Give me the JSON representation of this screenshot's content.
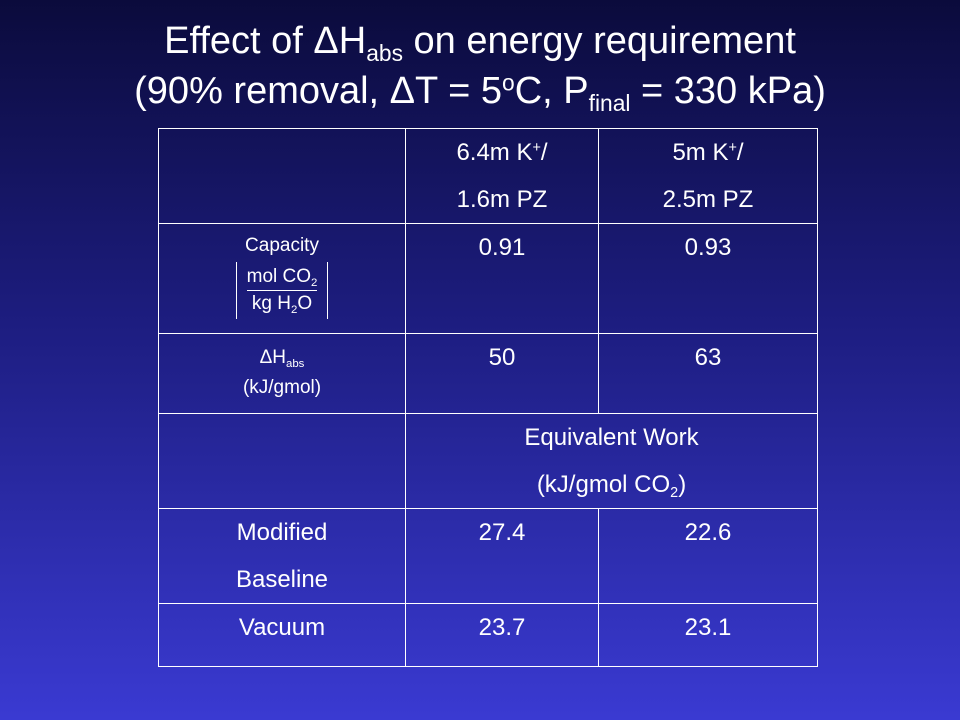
{
  "title": {
    "line1": [
      "Effect of ",
      "ΔH",
      "abs",
      " on energy requirement"
    ],
    "line2": [
      "(90% removal, ΔT = 5",
      "o",
      "C, P",
      "final",
      " = 330 kPa)"
    ]
  },
  "table": {
    "header": [
      [
        "6.4m K",
        "+",
        "/",
        "1.6m PZ"
      ],
      [
        "5m K",
        "+",
        "/",
        "2.5m PZ"
      ]
    ],
    "capacity": {
      "label": "Capacity",
      "numerator": [
        "mol CO",
        "2"
      ],
      "denominator": [
        "kg H",
        "2",
        "O"
      ],
      "values": [
        0.91,
        0.93
      ]
    },
    "dh_abs": {
      "label": [
        "ΔH",
        "abs"
      ],
      "unit": "(kJ/gmol)",
      "values": [
        50,
        63
      ]
    },
    "section": [
      "Equivalent Work",
      "(kJ/gmol CO",
      "2",
      ")"
    ],
    "modified": {
      "label": [
        "Modified",
        "Baseline"
      ],
      "values": [
        27.4,
        22.6
      ]
    },
    "vacuum": {
      "label": "Vacuum",
      "values": [
        23.7,
        23.1
      ]
    }
  }
}
